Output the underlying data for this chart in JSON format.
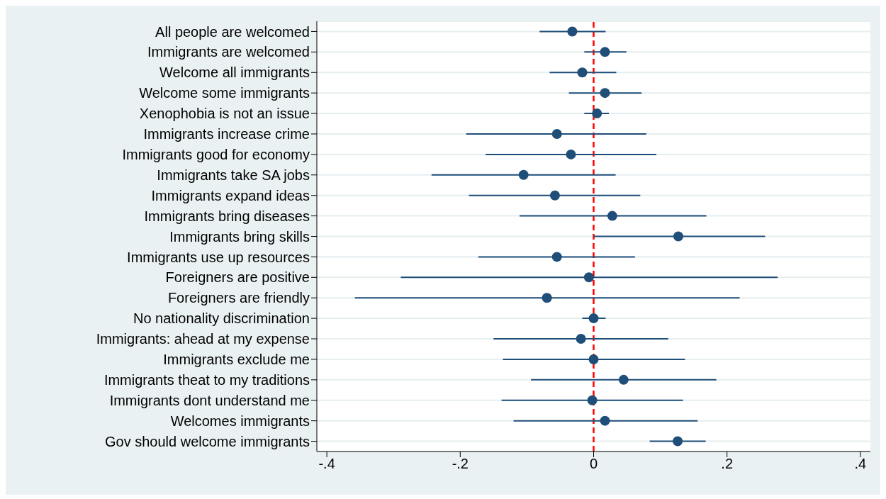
{
  "chart_data": {
    "type": "scatter",
    "orientation": "horizontal",
    "color": "#1f4e79",
    "marker": "circle",
    "grid": "y",
    "categories": [
      "All people are welcomed",
      "Immigrants are welcomed",
      "Welcome all immigrants",
      "Welcome some immigrants",
      "Xenophobia is not an issue",
      "Immigrants increase crime",
      "Immigrants good for economy",
      "Immigrants take SA jobs",
      "Immigrants expand ideas",
      "Immigrants bring diseases",
      "Immigrants bring skills",
      "Immigrants use up resources",
      "Foreigners are positive",
      "Foreigners are friendly",
      "No nationality discrimination",
      "Immigrants: ahead at my expense",
      "Immigrants exclude me",
      "Immigrants theat to my traditions",
      "Immigrants dont understand me",
      "Welcomes immigrants",
      "Gov should welcome immigrants"
    ],
    "values": [
      -0.032,
      0.017,
      -0.017,
      0.017,
      0.005,
      -0.055,
      -0.034,
      -0.105,
      -0.058,
      0.028,
      0.127,
      -0.055,
      -0.007,
      -0.07,
      0,
      -0.019,
      0,
      0.045,
      -0.002,
      0.017,
      0.126
    ],
    "errors": [
      [
        -0.081,
        0.018
      ],
      [
        -0.014,
        0.049
      ],
      [
        -0.066,
        0.034
      ],
      [
        -0.037,
        0.072
      ],
      [
        -0.014,
        0.023
      ],
      [
        -0.191,
        0.079
      ],
      [
        -0.162,
        0.094
      ],
      [
        -0.243,
        0.033
      ],
      [
        -0.187,
        0.07
      ],
      [
        -0.111,
        0.169
      ],
      [
        0,
        0.257
      ],
      [
        -0.173,
        0.062
      ],
      [
        -0.289,
        0.276
      ],
      [
        -0.358,
        0.219
      ],
      [
        -0.017,
        0.018
      ],
      [
        -0.15,
        0.112
      ],
      [
        -0.136,
        0.137
      ],
      [
        -0.094,
        0.184
      ],
      [
        -0.138,
        0.134
      ],
      [
        -0.12,
        0.156
      ],
      [
        0.084,
        0.168
      ]
    ],
    "xlim": [
      -0.415,
      0.415
    ],
    "xticks": [
      {
        "value": -0.4,
        "label": "-.4"
      },
      {
        "value": -0.2,
        "label": "-.2"
      },
      0,
      {
        "value": 0.2,
        "label": ".2"
      },
      {
        "value": 0.4,
        "label": ".4"
      }
    ],
    "ref_lines": [
      {
        "axis": "x",
        "value": 0,
        "color": "#ff0000",
        "line_style": "dashed"
      }
    ]
  }
}
